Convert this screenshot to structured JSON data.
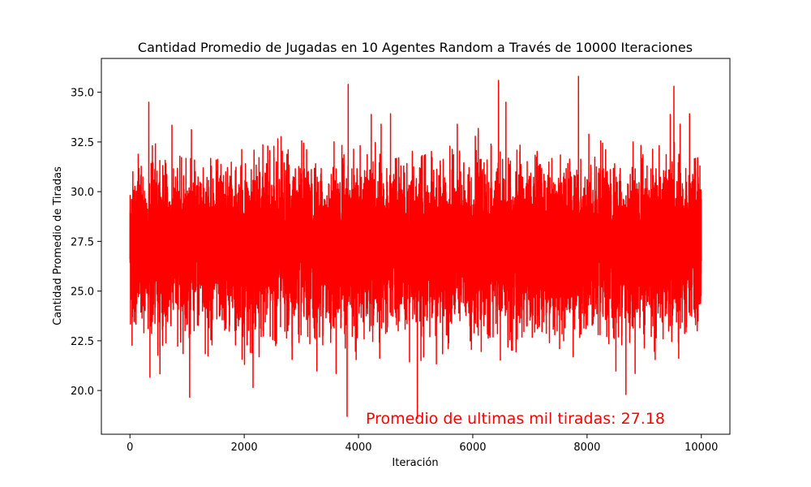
{
  "chart_data": {
    "type": "line",
    "title": "Cantidad Promedio de Jugadas en 10 Agentes Random a Través de 10000 Iteraciones",
    "xlabel": "Iteración",
    "ylabel": "Cantidad Promedio de Tiradas",
    "xlim": [
      -500,
      10500
    ],
    "ylim": [
      17.8,
      36.7
    ],
    "x_ticks": [
      0,
      2000,
      4000,
      6000,
      8000,
      10000
    ],
    "x_tick_labels": [
      "0",
      "2000",
      "4000",
      "6000",
      "8000",
      "10000"
    ],
    "y_ticks": [
      20.0,
      22.5,
      25.0,
      27.5,
      30.0,
      32.5,
      35.0
    ],
    "y_tick_labels": [
      "20.0",
      "22.5",
      "25.0",
      "27.5",
      "30.0",
      "32.5",
      "35.0"
    ],
    "grid": false,
    "series": [
      {
        "color": "#ff0000",
        "n_points": 10000,
        "mean": 27.2,
        "typical_range": [
          23.5,
          31.0
        ],
        "extremes": [
          {
            "x": 330,
            "y": 19.1
          },
          {
            "x": 330,
            "y": 34.5
          },
          {
            "x": 3800,
            "y": 18.7
          },
          {
            "x": 3820,
            "y": 35.4
          },
          {
            "x": 5030,
            "y": 18.6
          },
          {
            "x": 6450,
            "y": 35.6
          },
          {
            "x": 7850,
            "y": 35.8
          },
          {
            "x": 8680,
            "y": 19.8
          },
          {
            "x": 9520,
            "y": 35.3
          }
        ]
      }
    ],
    "annotation": {
      "text": "Promedio de ultimas mil tiradas: 27.18",
      "color": "#ff0000"
    }
  }
}
